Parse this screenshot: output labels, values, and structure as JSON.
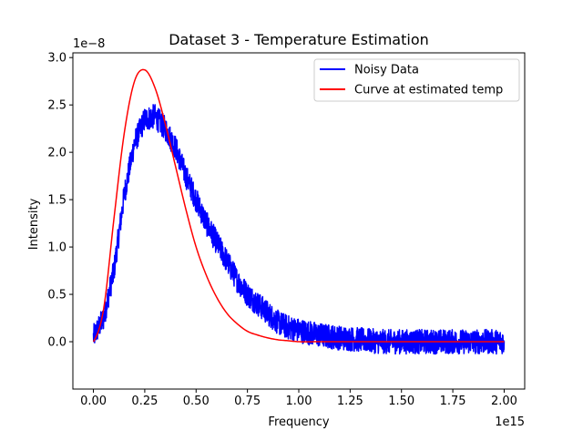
{
  "chart_data": {
    "type": "line",
    "title": "Dataset 3 - Temperature Estimation",
    "xlabel": "Frequency",
    "ylabel": "Intensity",
    "x_multiplier": "1e15",
    "y_multiplier": "1e−8",
    "xlim": [
      -0.1,
      2.1
    ],
    "ylim": [
      -0.5,
      3.05
    ],
    "x_ticks": [
      0.0,
      0.25,
      0.5,
      0.75,
      1.0,
      1.25,
      1.5,
      1.75,
      2.0
    ],
    "x_tick_labels": [
      "0.00",
      "0.25",
      "0.50",
      "0.75",
      "1.00",
      "1.25",
      "1.50",
      "1.75",
      "2.00"
    ],
    "y_ticks": [
      0.0,
      0.5,
      1.0,
      1.5,
      2.0,
      2.5,
      3.0
    ],
    "y_tick_labels": [
      "0.0",
      "0.5",
      "1.0",
      "1.5",
      "2.0",
      "2.5",
      "3.0"
    ],
    "grid": false,
    "legend_position": "top-right",
    "series": [
      {
        "name": "Noisy Data",
        "color": "#0000ff",
        "noise_amplitude": 0.13,
        "x": [
          0.0,
          0.05,
          0.1,
          0.15,
          0.2,
          0.25,
          0.3,
          0.35,
          0.4,
          0.45,
          0.5,
          0.55,
          0.6,
          0.65,
          0.7,
          0.75,
          0.8,
          0.85,
          0.9,
          0.95,
          1.0,
          1.1,
          1.2,
          1.3,
          1.4,
          1.5,
          1.6,
          1.7,
          1.8,
          1.9,
          2.0
        ],
        "y": [
          0.05,
          0.25,
          0.75,
          1.55,
          2.1,
          2.35,
          2.38,
          2.25,
          2.05,
          1.75,
          1.5,
          1.25,
          1.05,
          0.85,
          0.65,
          0.5,
          0.4,
          0.3,
          0.2,
          0.15,
          0.12,
          0.07,
          0.04,
          0.02,
          0.0,
          0.0,
          0.0,
          0.0,
          0.0,
          0.0,
          0.0
        ]
      },
      {
        "name": "Curve at estimated temp",
        "color": "#ff0000",
        "x": [
          0.0,
          0.05,
          0.1,
          0.15,
          0.2,
          0.25,
          0.3,
          0.35,
          0.4,
          0.45,
          0.5,
          0.55,
          0.6,
          0.65,
          0.7,
          0.75,
          0.8,
          0.85,
          0.9,
          0.95,
          1.0,
          1.1,
          1.2,
          1.3,
          1.4,
          1.5,
          1.6,
          1.7,
          1.8,
          1.9,
          2.0
        ],
        "y": [
          0.0,
          0.35,
          1.3,
          2.2,
          2.75,
          2.87,
          2.68,
          2.3,
          1.85,
          1.4,
          1.0,
          0.7,
          0.47,
          0.3,
          0.19,
          0.11,
          0.07,
          0.04,
          0.02,
          0.01,
          0.0,
          0.0,
          0.0,
          0.0,
          0.0,
          0.0,
          0.0,
          0.0,
          0.0,
          0.0,
          0.0
        ]
      }
    ]
  }
}
